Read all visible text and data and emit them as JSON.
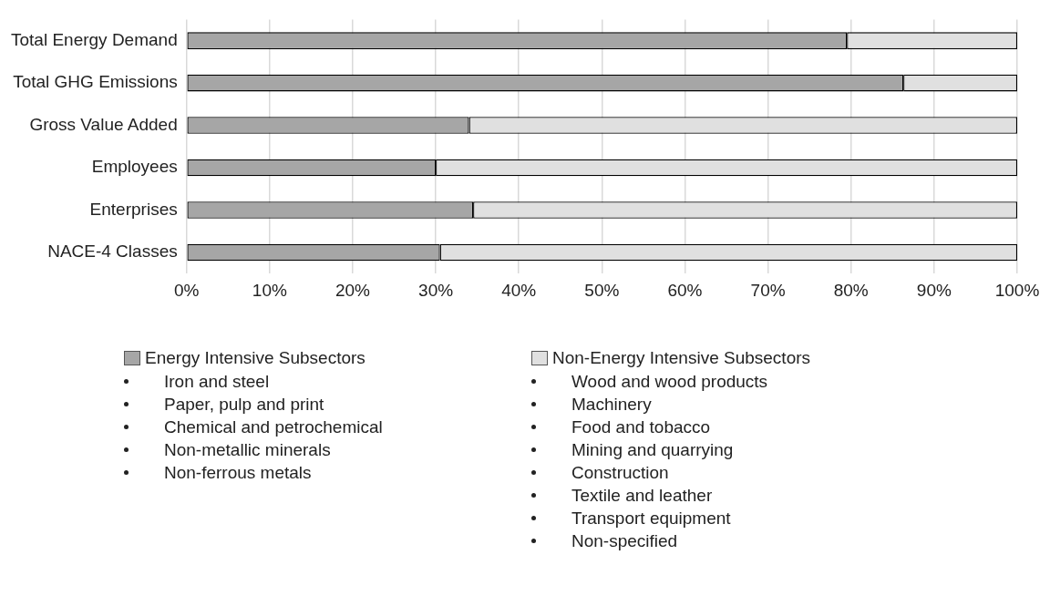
{
  "chart_data": {
    "type": "bar",
    "orientation": "horizontal",
    "stacked": true,
    "categories": [
      "Total Energy Demand",
      "Total GHG Emissions",
      "Gross Value Added",
      "Employees",
      "Enterprises",
      "NACE-4 Classes"
    ],
    "series": [
      {
        "name": "Energy Intensive Subsectors",
        "color": "#a6a6a6",
        "values": [
          79.5,
          86.3,
          34,
          30,
          34.5,
          30.5
        ]
      },
      {
        "name": "Non-Energy Intensive Subsectors",
        "color": "#e0e0e0",
        "values": [
          20.5,
          13.7,
          66,
          70,
          65.5,
          69.5
        ]
      }
    ],
    "xlim": [
      0,
      100
    ],
    "xticks": [
      {
        "value": 0,
        "label": "0%"
      },
      {
        "value": 10,
        "label": "10%"
      },
      {
        "value": 20,
        "label": "20%"
      },
      {
        "value": 30,
        "label": "30%"
      },
      {
        "value": 40,
        "label": "40%"
      },
      {
        "value": 50,
        "label": "50%"
      },
      {
        "value": 60,
        "label": "60%"
      },
      {
        "value": 70,
        "label": "70%"
      },
      {
        "value": 80,
        "label": "80%"
      },
      {
        "value": 90,
        "label": "90%"
      },
      {
        "value": 100,
        "label": "100%"
      }
    ],
    "grid": "x",
    "legend": "bottom",
    "annotations": [
      "Iron and steel",
      "Paper, pulp and print",
      "Chemical and petrochemical",
      "Non-metallic minerals",
      "Non-ferrous metals",
      "Wood and wood products",
      "Machinery",
      "Food and tobacco",
      "Mining and quarrying",
      "Construction",
      "Textile and leather",
      "Transport equipment",
      "Non-specified"
    ]
  }
}
